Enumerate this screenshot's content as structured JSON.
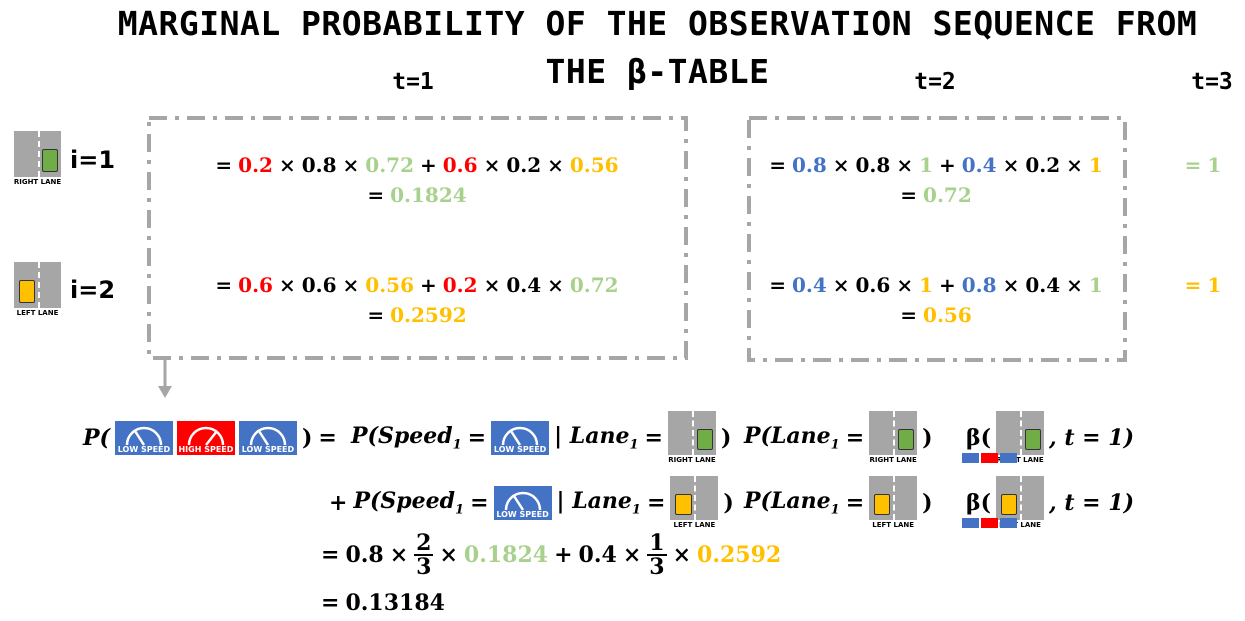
{
  "header": {
    "title": "MARGINAL PROBABILITY OF THE OBSERVATION SEQUENCE FROM THE β-TABLE",
    "columns": [
      "t=1",
      "t=2",
      "t=3"
    ]
  },
  "rows": [
    {
      "label": "i=1",
      "icon": {
        "label": "RIGHT LANE",
        "car": "#70ad47",
        "side": "right"
      }
    },
    {
      "label": "i=2",
      "icon": {
        "label": "LEFT LANE",
        "car": "#ffc000",
        "side": "left"
      }
    }
  ],
  "table": {
    "rows": [
      [
        [
          [
            {
              "t": "="
            },
            {
              "t": "0.2",
              "c": "#ff0000"
            },
            {
              "t": "×"
            },
            {
              "t": "0.8"
            },
            {
              "t": "×"
            },
            {
              "t": "0.72",
              "c": "#a9d18e"
            },
            {
              "t": "+"
            },
            {
              "t": "0.6",
              "c": "#ff0000"
            },
            {
              "t": "×"
            },
            {
              "t": "0.2"
            },
            {
              "t": "×"
            },
            {
              "t": "0.56",
              "c": "#ffc000"
            }
          ],
          [
            {
              "t": "="
            },
            {
              "t": "0.1824",
              "c": "#a9d18e"
            }
          ]
        ],
        [
          [
            {
              "t": "="
            },
            {
              "t": "0.8",
              "c": "#4472c4"
            },
            {
              "t": "×"
            },
            {
              "t": "0.8"
            },
            {
              "t": "×"
            },
            {
              "t": "1",
              "c": "#a9d18e"
            },
            {
              "t": "+"
            },
            {
              "t": "0.4",
              "c": "#4472c4"
            },
            {
              "t": "×"
            },
            {
              "t": "0.2"
            },
            {
              "t": "×"
            },
            {
              "t": "1",
              "c": "#ffc000"
            }
          ],
          [
            {
              "t": "="
            },
            {
              "t": "0.72",
              "c": "#a9d18e"
            }
          ]
        ],
        [
          [
            {
              "t": "=",
              "c": "#a9d18e"
            },
            {
              "t": "1",
              "c": "#a9d18e"
            }
          ]
        ]
      ],
      [
        [
          [
            {
              "t": "="
            },
            {
              "t": "0.6",
              "c": "#ff0000"
            },
            {
              "t": "×"
            },
            {
              "t": "0.6"
            },
            {
              "t": "×"
            },
            {
              "t": "0.56",
              "c": "#ffc000"
            },
            {
              "t": "+"
            },
            {
              "t": "0.2",
              "c": "#ff0000"
            },
            {
              "t": "×"
            },
            {
              "t": "0.4"
            },
            {
              "t": "×"
            },
            {
              "t": "0.72",
              "c": "#a9d18e"
            }
          ],
          [
            {
              "t": "="
            },
            {
              "t": "0.2592",
              "c": "#ffc000"
            }
          ]
        ],
        [
          [
            {
              "t": "="
            },
            {
              "t": "0.4",
              "c": "#4472c4"
            },
            {
              "t": "×"
            },
            {
              "t": "0.6"
            },
            {
              "t": "×"
            },
            {
              "t": "1",
              "c": "#ffc000"
            },
            {
              "t": "+"
            },
            {
              "t": "0.8",
              "c": "#4472c4"
            },
            {
              "t": "×"
            },
            {
              "t": "0.4"
            },
            {
              "t": "×"
            },
            {
              "t": "1",
              "c": "#a9d18e"
            }
          ],
          [
            {
              "t": "="
            },
            {
              "t": "0.56",
              "c": "#ffc000"
            }
          ]
        ],
        [
          [
            {
              "t": "=",
              "c": "#ffc000"
            },
            {
              "t": "1",
              "c": "#ffc000"
            }
          ]
        ]
      ]
    ]
  },
  "derivation": {
    "lines": [
      [
        [
          {
            "t": "P("
          },
          {
            "label": "LOW SPEED",
            "speed": "#4472c4"
          },
          {
            "label": "HIGH SPEED",
            "speed": "#ff0000"
          },
          {
            "label": "LOW SPEED",
            "speed": "#4472c4"
          },
          {
            "t": ")"
          },
          {
            "t": "="
          }
        ],
        [
          {
            "t": "P(Speed",
            "sub": "1"
          },
          {
            "t": "="
          },
          {
            "label": "LOW SPEED",
            "speed": "#4472c4"
          },
          {
            "t": "| Lane",
            "sub": "1"
          },
          {
            "t": "="
          },
          {
            "label": "RIGHT LANE",
            "car": "#70ad47",
            "side": "right"
          },
          {
            "t": ")"
          }
        ],
        [
          {
            "t": "P(Lane",
            "sub": "1"
          },
          {
            "t": "="
          },
          {
            "label": "RIGHT LANE",
            "car": "#70ad47",
            "side": "right"
          },
          {
            "t": ")"
          }
        ],
        [
          {
            "t": "β("
          },
          {
            "label": "RIGHT LANE",
            "car": "#70ad47",
            "side": "right",
            "mini": [
              "#4472c4",
              "#ff0000",
              "#4472c4"
            ]
          },
          {
            "t": ", t = 1)"
          }
        ]
      ],
      [
        [
          {
            "t": "+"
          },
          {
            "t": "P(Speed",
            "sub": "1"
          },
          {
            "t": "="
          },
          {
            "label": "LOW SPEED",
            "speed": "#4472c4"
          },
          {
            "t": "| Lane",
            "sub": "1"
          },
          {
            "t": "="
          },
          {
            "label": "LEFT LANE",
            "car": "#ffc000",
            "side": "left"
          },
          {
            "t": ")"
          }
        ],
        [
          {
            "t": "P(Lane",
            "sub": "1"
          },
          {
            "t": "="
          },
          {
            "label": "LEFT LANE",
            "car": "#ffc000",
            "side": "left"
          },
          {
            "t": ")"
          }
        ],
        [
          {
            "t": "β("
          },
          {
            "label": "LEFT LANE",
            "car": "#ffc000",
            "side": "left",
            "mini": [
              "#4472c4",
              "#ff0000",
              "#4472c4"
            ]
          },
          {
            "t": ", t = 1)"
          }
        ]
      ],
      [
        [
          {
            "t": "="
          },
          {
            "t": "0.8"
          },
          {
            "t": "×"
          },
          {
            "frac": [
              "2",
              "3"
            ]
          },
          {
            "t": "×"
          },
          {
            "t": "0.1824",
            "c": "#a9d18e"
          },
          {
            "t": "+"
          },
          {
            "t": "0.4"
          },
          {
            "t": "×"
          },
          {
            "frac": [
              "1",
              "3"
            ]
          },
          {
            "t": "×"
          },
          {
            "t": "0.2592",
            "c": "#ffc000"
          }
        ]
      ],
      [
        [
          {
            "t": "="
          },
          {
            "t": "0.13184"
          }
        ]
      ]
    ]
  }
}
